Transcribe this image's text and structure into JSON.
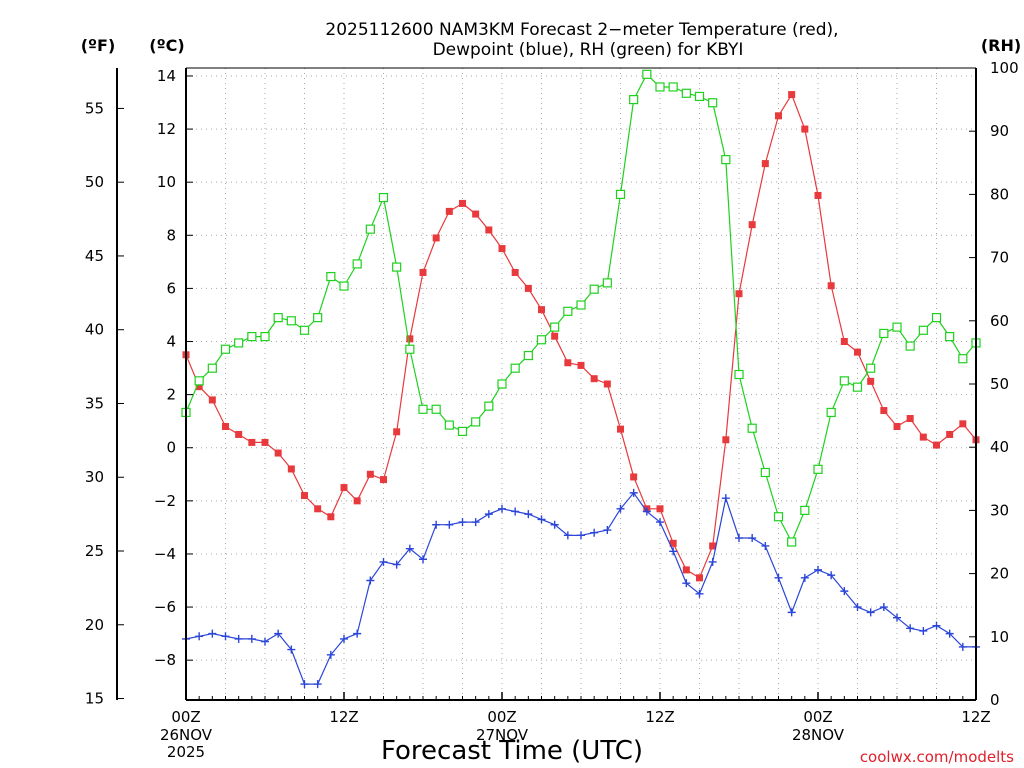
{
  "title_line1": "2025112600 NAM3KM Forecast 2−meter Temperature (red),",
  "title_line2": "Dewpoint (blue), RH (green) for KBYI",
  "units": {
    "f": "(ºF)",
    "c": "(ºC)",
    "rh": "(RH)"
  },
  "xlabel": "Forecast Time (UTC)",
  "credit": "coolwx.com/modelts",
  "colors": {
    "temperature": "#e8393c",
    "dewpoint": "#2a45d8",
    "rh": "#1fd11f",
    "axis": "#000000",
    "credit": "#e0202c"
  },
  "chart_data": {
    "type": "line",
    "title": "2025112600 NAM3KM Forecast 2-meter Temperature (red), Dewpoint (blue), RH (green) for KBYI",
    "xlabel": "Forecast Time (UTC)",
    "x_unit": "forecast hour",
    "xlim": [
      0,
      60
    ],
    "x_ticks": [
      {
        "hour": 0,
        "label": "00Z",
        "date": "26NOV",
        "year": "2025"
      },
      {
        "hour": 12,
        "label": "12Z",
        "date": "",
        "year": ""
      },
      {
        "hour": 24,
        "label": "00Z",
        "date": "27NOV",
        "year": ""
      },
      {
        "hour": 36,
        "label": "12Z",
        "date": "",
        "year": ""
      },
      {
        "hour": 48,
        "label": "00Z",
        "date": "28NOV",
        "year": ""
      },
      {
        "hour": 60,
        "label": "12Z",
        "date": "",
        "year": ""
      }
    ],
    "y_celsius": {
      "label": "(ºC)",
      "range": [
        -9.5,
        14.3
      ],
      "ticks": [
        "−8",
        "−6",
        "−4",
        "−2",
        "0",
        "2",
        "4",
        "6",
        "8",
        "10",
        "12",
        "14"
      ],
      "tick_values": [
        -8,
        -6,
        -4,
        -2,
        0,
        2,
        4,
        6,
        8,
        10,
        12,
        14
      ]
    },
    "y_fahrenheit": {
      "label": "(ºF)",
      "ticks": [
        "15",
        "20",
        "25",
        "30",
        "35",
        "40",
        "45",
        "50",
        "55"
      ],
      "tick_values": [
        15,
        20,
        25,
        30,
        35,
        40,
        45,
        50,
        55
      ]
    },
    "y_rh": {
      "label": "(RH)",
      "range": [
        0,
        100
      ],
      "ticks": [
        "0",
        "10",
        "20",
        "30",
        "40",
        "50",
        "60",
        "70",
        "80",
        "90",
        "100"
      ],
      "tick_values": [
        0,
        10,
        20,
        30,
        40,
        50,
        60,
        70,
        80,
        90,
        100
      ]
    },
    "series": [
      {
        "name": "2-meter Temperature",
        "unit": "C",
        "color": "red",
        "marker": "filled-square",
        "x": [
          0,
          1,
          2,
          3,
          4,
          5,
          6,
          7,
          8,
          9,
          10,
          11,
          12,
          13,
          14,
          15,
          16,
          17,
          18,
          19,
          20,
          21,
          22,
          23,
          24,
          25,
          26,
          27,
          28,
          29,
          30,
          31,
          32,
          33,
          34,
          35,
          36,
          37,
          38,
          39,
          40,
          41,
          42,
          43,
          44,
          45,
          46,
          47,
          48,
          49,
          50,
          51,
          52,
          53,
          54,
          55,
          56,
          57,
          58,
          59,
          60
        ],
        "values": [
          3.5,
          2.3,
          1.8,
          0.8,
          0.5,
          0.2,
          0.2,
          -0.2,
          -0.8,
          -1.8,
          -2.3,
          -2.6,
          -1.5,
          -2.0,
          -1.0,
          -1.2,
          0.6,
          4.1,
          6.6,
          7.9,
          8.9,
          9.2,
          8.8,
          8.2,
          7.5,
          6.6,
          6.0,
          5.2,
          4.2,
          3.2,
          3.1,
          2.6,
          2.4,
          0.7,
          -1.1,
          -2.3,
          -2.3,
          -3.6,
          -4.6,
          -4.9,
          -3.7,
          0.3,
          5.8,
          8.4,
          10.7,
          12.5,
          13.3,
          12.0,
          9.5,
          6.1,
          4.0,
          3.6,
          2.5,
          1.4,
          0.8,
          1.1,
          0.4,
          0.1,
          0.5,
          0.9,
          0.3
        ]
      },
      {
        "name": "Dewpoint",
        "unit": "C",
        "color": "blue",
        "marker": "plus",
        "x": [
          0,
          1,
          2,
          3,
          4,
          5,
          6,
          7,
          8,
          9,
          10,
          11,
          12,
          13,
          14,
          15,
          16,
          17,
          18,
          19,
          20,
          21,
          22,
          23,
          24,
          25,
          26,
          27,
          28,
          29,
          30,
          31,
          32,
          33,
          34,
          35,
          36,
          37,
          38,
          39,
          40,
          41,
          42,
          43,
          44,
          45,
          46,
          47,
          48,
          49,
          50,
          51,
          52,
          53,
          54,
          55,
          56,
          57,
          58,
          59,
          60
        ],
        "values": [
          -7.2,
          -7.1,
          -7.0,
          -7.1,
          -7.2,
          -7.2,
          -7.3,
          -7.0,
          -7.6,
          -8.9,
          -8.9,
          -7.8,
          -7.2,
          -7.0,
          -5.0,
          -4.3,
          -4.4,
          -3.8,
          -4.2,
          -2.9,
          -2.9,
          -2.8,
          -2.8,
          -2.5,
          -2.3,
          -2.4,
          -2.5,
          -2.7,
          -2.9,
          -3.3,
          -3.3,
          -3.2,
          -3.1,
          -2.3,
          -1.7,
          -2.4,
          -2.8,
          -3.9,
          -5.1,
          -5.5,
          -4.3,
          -1.9,
          -3.4,
          -3.4,
          -3.7,
          -4.9,
          -6.2,
          -4.9,
          -4.6,
          -4.8,
          -5.4,
          -6.0,
          -6.2,
          -6.0,
          -6.4,
          -6.8,
          -6.9,
          -6.7,
          -7.0,
          -7.5,
          -7.5
        ]
      },
      {
        "name": "Relative Humidity",
        "unit": "%",
        "color": "green",
        "marker": "open-square",
        "x": [
          0,
          1,
          2,
          3,
          4,
          5,
          6,
          7,
          8,
          9,
          10,
          11,
          12,
          13,
          14,
          15,
          16,
          17,
          18,
          19,
          20,
          21,
          22,
          23,
          24,
          25,
          26,
          27,
          28,
          29,
          30,
          31,
          32,
          33,
          34,
          35,
          36,
          37,
          38,
          39,
          40,
          41,
          42,
          43,
          44,
          45,
          46,
          47,
          48,
          49,
          50,
          51,
          52,
          53,
          54,
          55,
          56,
          57,
          58,
          59,
          60
        ],
        "values": [
          45.5,
          50.5,
          52.5,
          55.5,
          56.5,
          57.5,
          57.5,
          60.5,
          60.0,
          58.5,
          60.5,
          67.0,
          65.5,
          69.0,
          74.5,
          79.5,
          68.5,
          55.5,
          46.0,
          46.0,
          43.5,
          42.5,
          44.0,
          46.5,
          50.0,
          52.5,
          54.5,
          57.0,
          59.0,
          61.5,
          62.5,
          65.0,
          66.0,
          80.0,
          95.0,
          99.0,
          97.0,
          97.0,
          96.0,
          95.5,
          94.5,
          85.5,
          51.5,
          43.0,
          36.0,
          29.0,
          25.0,
          30.0,
          36.5,
          45.5,
          50.5,
          49.5,
          52.5,
          58.0,
          59.0,
          56.0,
          58.5,
          60.5,
          57.5,
          54.0,
          56.5
        ]
      }
    ]
  }
}
